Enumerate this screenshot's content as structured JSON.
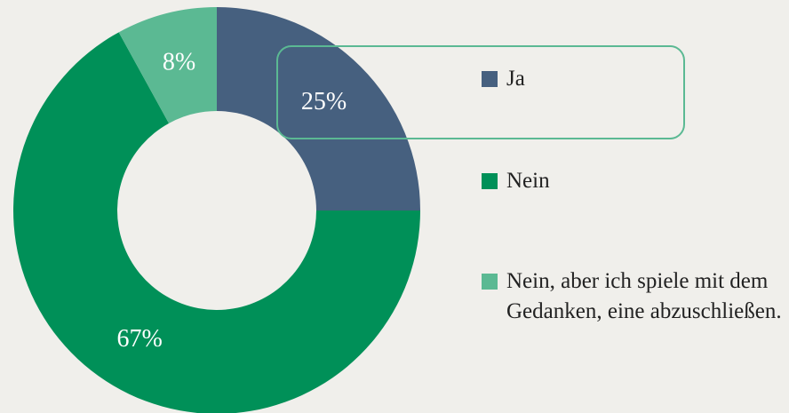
{
  "chart_data": {
    "type": "donut",
    "categories": [
      "Ja",
      "Nein",
      "Nein, aber ich spiele mit dem Gedanken, eine abzuschließen."
    ],
    "values": [
      25,
      67,
      8
    ],
    "value_labels": [
      "25%",
      "67%",
      "8%"
    ],
    "colors": [
      "#46607f",
      "#009058",
      "#5bb993"
    ]
  }
}
